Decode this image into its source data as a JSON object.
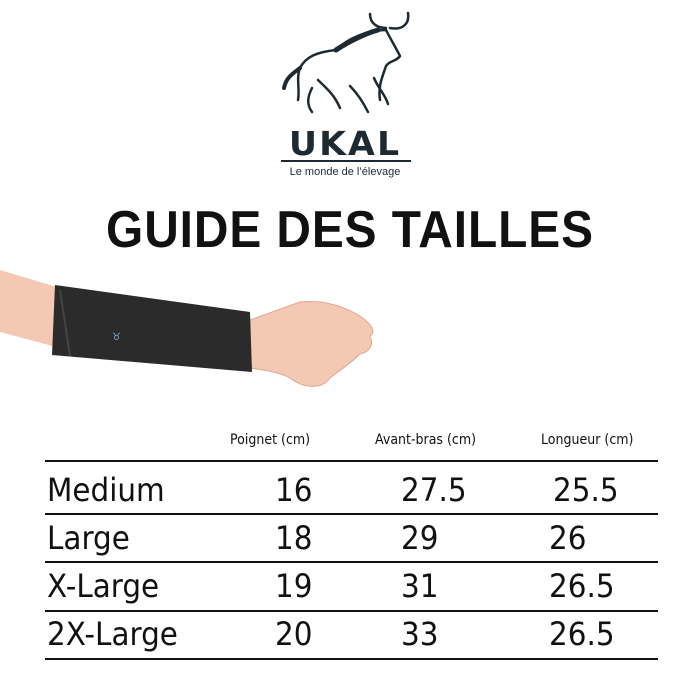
{
  "logo": {
    "brand": "UKAL",
    "tagline": "Le monde de l’élevage"
  },
  "title": "GUIDE DES TAILLES",
  "table": {
    "headers": [
      "Poignet (cm)",
      "Avant-bras (cm)",
      "Longueur (cm)"
    ],
    "rows": [
      {
        "size": "Medium",
        "values": [
          "16",
          "27.5",
          "25.5"
        ]
      },
      {
        "size": "Large",
        "values": [
          "18",
          "29",
          "26"
        ]
      },
      {
        "size": "X-Large",
        "values": [
          "19",
          "31",
          "26.5"
        ]
      },
      {
        "size": "2X-Large",
        "values": [
          "20",
          "33",
          "26.5"
        ]
      }
    ]
  },
  "colors": {
    "logo": "#1d2a33",
    "sleeve": "#2b2b2b",
    "skin": "#f3c9b3"
  }
}
